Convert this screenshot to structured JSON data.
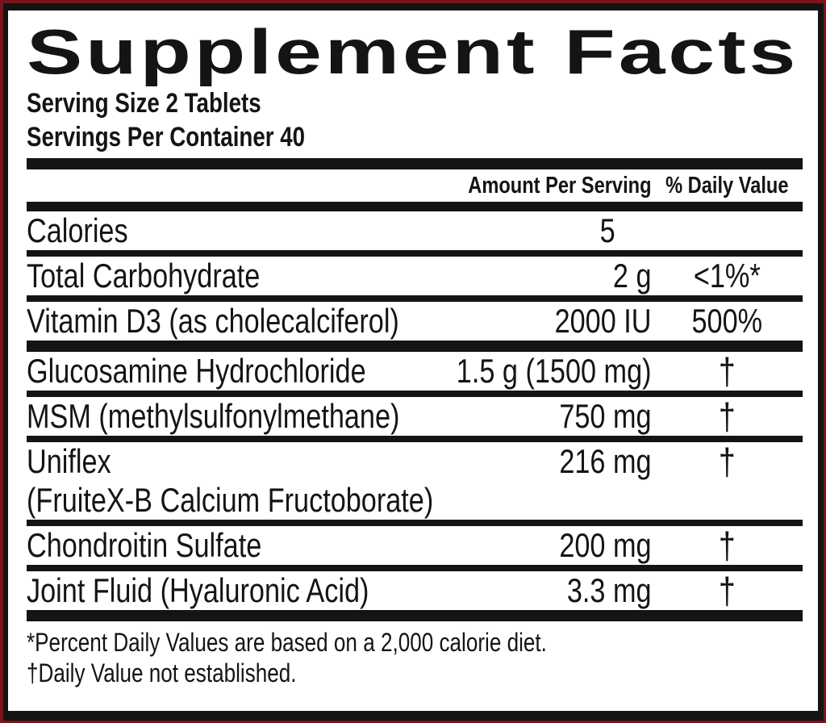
{
  "label": {
    "title": "Supplement Facts",
    "serving": {
      "size": "Serving Size 2 Tablets",
      "per_container": "Servings Per Container 40"
    },
    "columns": {
      "amount": "Amount Per Serving",
      "daily_value": "% Daily Value"
    },
    "rows": [
      {
        "name": "Calories",
        "amount": "5",
        "daily_value": ""
      },
      {
        "name": "Total Carbohydrate",
        "amount": "2 g",
        "daily_value": "<1%*"
      },
      {
        "name": "Vitamin D3 (as cholecalciferol)",
        "amount": "2000 IU",
        "daily_value": "500%"
      },
      {
        "name": "Glucosamine Hydrochloride",
        "amount": "1.5 g (1500 mg)",
        "daily_value": "†"
      },
      {
        "name": "MSM (methylsulfonylmethane)",
        "amount": "750 mg",
        "daily_value": "†"
      },
      {
        "name": "Uniflex",
        "name_line2": "(FruiteX-B Calcium Fructoborate)",
        "amount": "216 mg",
        "daily_value": "†"
      },
      {
        "name": "Chondroitin Sulfate",
        "amount": "200 mg",
        "daily_value": "†"
      },
      {
        "name": "Joint Fluid (Hyaluronic Acid)",
        "amount": "3.3 mg",
        "daily_value": "†"
      }
    ],
    "footnotes": {
      "percent": "*Percent Daily Values are based on a 2,000 calorie diet.",
      "dagger": "†Daily Value not established."
    },
    "colors": {
      "border_red": "#7a151c",
      "ink": "#141414",
      "background": "#ffffff"
    }
  }
}
